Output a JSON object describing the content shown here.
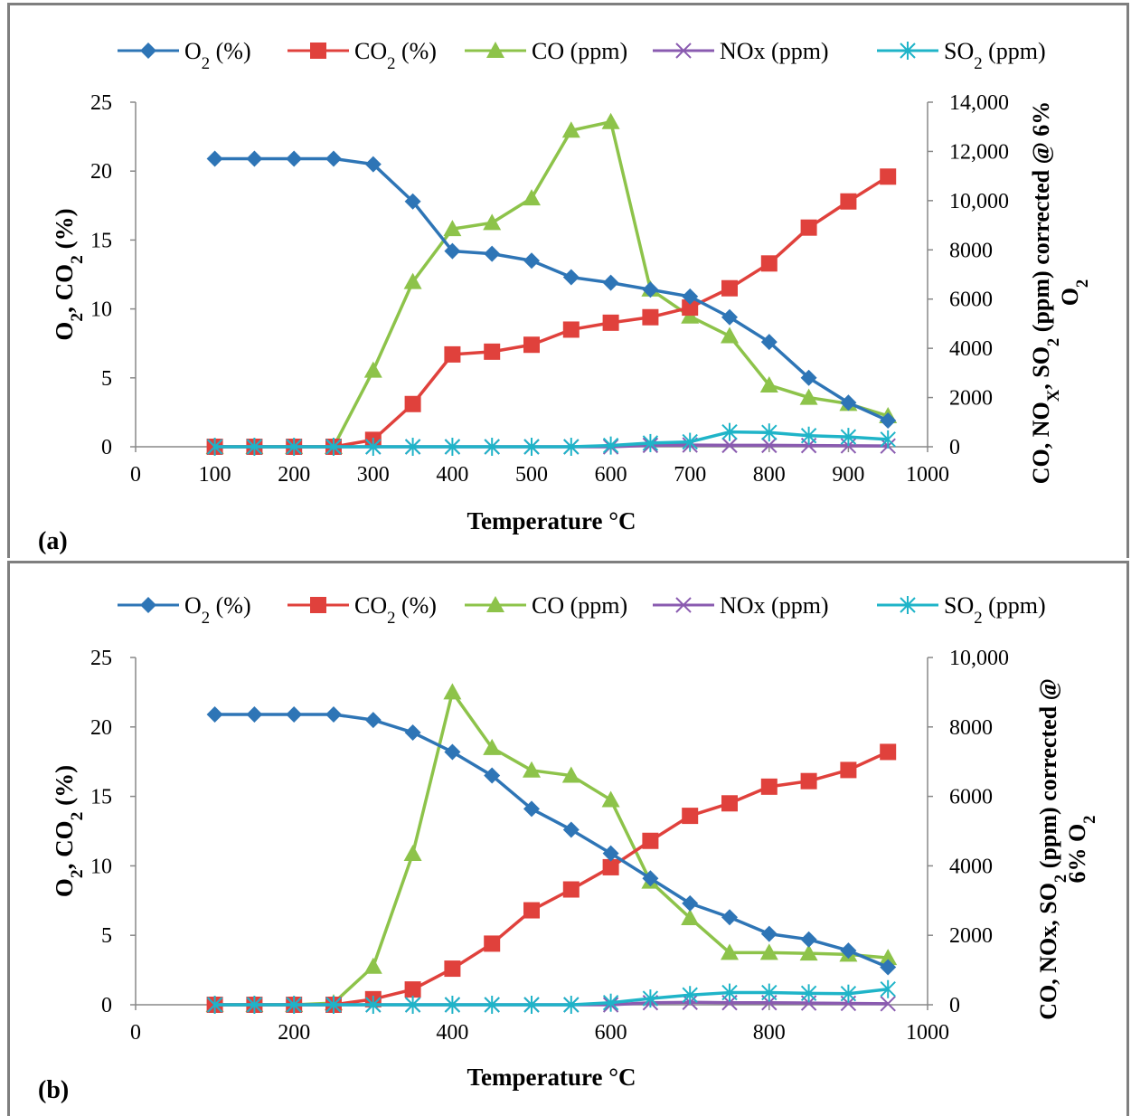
{
  "legend_labels": {
    "o2": "O2 (%)",
    "co2": "CO2 (%)",
    "co": "CO (ppm)",
    "nox": "NOx (ppm)",
    "so2": "SO2 (ppm)"
  },
  "colors": {
    "o2": "#2e75b6",
    "co2": "#e0413c",
    "co": "#8dc34a",
    "nox": "#8a5bb0",
    "so2": "#1fb4c8"
  },
  "chart_data": [
    {
      "panel": "(a)",
      "type": "line",
      "xlabel": "Temperature °C",
      "ylabel_left": "O2, CO2 (%)",
      "ylabel_right": "CO, NOX, SO2 (ppm) corrected @ 6% O2",
      "xlim": [
        0,
        1000
      ],
      "x_ticks": [
        "0",
        "100",
        "200",
        "300",
        "400",
        "500",
        "600",
        "700",
        "800",
        "900",
        "1000"
      ],
      "ylim_left": [
        0,
        25
      ],
      "y_left_ticks": [
        "0",
        "5",
        "10",
        "15",
        "20",
        "25"
      ],
      "ylim_right": [
        0,
        14000
      ],
      "y_right_ticks": [
        "0",
        "2000",
        "4000",
        "6000",
        "8000",
        "10,000",
        "12,000",
        "14,000"
      ],
      "legend_position": "top",
      "x": [
        100,
        150,
        200,
        250,
        300,
        350,
        400,
        450,
        500,
        550,
        600,
        650,
        700,
        750,
        800,
        850,
        900,
        950
      ],
      "series": [
        {
          "name": "O2 (%)",
          "axis": "left",
          "marker": "diamond",
          "values": [
            20.9,
            20.9,
            20.9,
            20.9,
            20.5,
            17.8,
            14.2,
            14.0,
            13.5,
            12.3,
            11.9,
            11.4,
            10.9,
            9.4,
            7.6,
            5.0,
            3.2,
            1.9
          ]
        },
        {
          "name": "CO2 (%)",
          "axis": "left",
          "marker": "square",
          "values": [
            0,
            0,
            0,
            0,
            0.5,
            3.1,
            6.7,
            6.9,
            7.4,
            8.5,
            9.0,
            9.4,
            10.1,
            11.5,
            13.3,
            15.9,
            17.8,
            19.6
          ]
        },
        {
          "name": "CO (ppm)",
          "axis": "right",
          "marker": "triangle",
          "values": [
            0,
            0,
            0,
            0,
            3100,
            6700,
            8850,
            9100,
            10100,
            12850,
            13200,
            6400,
            5300,
            4500,
            2500,
            2000,
            1750,
            1250
          ]
        },
        {
          "name": "NOx (ppm)",
          "axis": "right",
          "marker": "x",
          "values": [
            0,
            0,
            0,
            0,
            0,
            0,
            0,
            0,
            0,
            0,
            0,
            60,
            70,
            60,
            60,
            50,
            40,
            30
          ]
        },
        {
          "name": "SO2 (ppm)",
          "axis": "right",
          "marker": "star",
          "values": [
            0,
            0,
            0,
            0,
            0,
            0,
            0,
            0,
            0,
            0,
            50,
            150,
            200,
            600,
            580,
            450,
            400,
            300
          ]
        }
      ]
    },
    {
      "panel": "(b)",
      "type": "line",
      "xlabel": "Temperature °C",
      "ylabel_left": "O2, CO2 (%)",
      "ylabel_right": "CO, NOx, SO2 (ppm) corrected @ 6% O2",
      "xlim": [
        0,
        1000
      ],
      "x_ticks": [
        "0",
        "200",
        "400",
        "600",
        "800",
        "1000"
      ],
      "ylim_left": [
        0,
        25
      ],
      "y_left_ticks": [
        "0",
        "5",
        "10",
        "15",
        "20",
        "25"
      ],
      "ylim_right": [
        0,
        10000
      ],
      "y_right_ticks": [
        "0",
        "2000",
        "4000",
        "6000",
        "8000",
        "10,000"
      ],
      "legend_position": "top",
      "x": [
        100,
        150,
        200,
        250,
        300,
        350,
        400,
        450,
        500,
        550,
        600,
        650,
        700,
        750,
        800,
        850,
        900,
        950
      ],
      "series": [
        {
          "name": "O2 (%)",
          "axis": "left",
          "marker": "diamond",
          "values": [
            20.9,
            20.9,
            20.9,
            20.9,
            20.5,
            19.6,
            18.2,
            16.5,
            14.1,
            12.6,
            10.9,
            9.1,
            7.3,
            6.3,
            5.1,
            4.7,
            3.9,
            2.7
          ]
        },
        {
          "name": "CO2 (%)",
          "axis": "left",
          "marker": "square",
          "values": [
            0,
            0,
            0,
            0,
            0.4,
            1.1,
            2.6,
            4.4,
            6.8,
            8.3,
            9.9,
            11.8,
            13.6,
            14.5,
            15.7,
            16.1,
            16.9,
            18.2
          ]
        },
        {
          "name": "CO (ppm)",
          "axis": "right",
          "marker": "triangle",
          "values": [
            0,
            0,
            0,
            50,
            1100,
            4350,
            9000,
            7400,
            6750,
            6600,
            5900,
            3550,
            2500,
            1500,
            1500,
            1480,
            1450,
            1350
          ]
        },
        {
          "name": "NOx (ppm)",
          "axis": "right",
          "marker": "x",
          "values": [
            0,
            0,
            0,
            0,
            0,
            0,
            0,
            0,
            0,
            0,
            0,
            60,
            70,
            60,
            60,
            50,
            40,
            30
          ]
        },
        {
          "name": "SO2 (ppm)",
          "axis": "right",
          "marker": "star",
          "values": [
            0,
            0,
            0,
            0,
            0,
            0,
            0,
            0,
            0,
            0,
            60,
            180,
            280,
            350,
            350,
            330,
            320,
            450
          ]
        }
      ]
    }
  ]
}
